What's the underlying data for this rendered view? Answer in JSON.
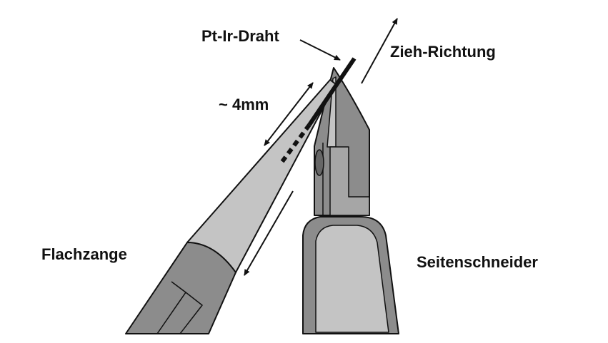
{
  "labels": {
    "wire": "Pt-Ir-Draht",
    "pull_direction": "Zieh-Richtung",
    "length": "~ 4mm",
    "flat_pliers": "Flachzange",
    "side_cutter": "Seitenschneider"
  },
  "colors": {
    "outline": "#111111",
    "metal_dark": "#8c8c8c",
    "metal_light": "#c4c4c4",
    "metal_mid": "#a6a6a6",
    "wire": "#111111",
    "background": "#ffffff"
  }
}
